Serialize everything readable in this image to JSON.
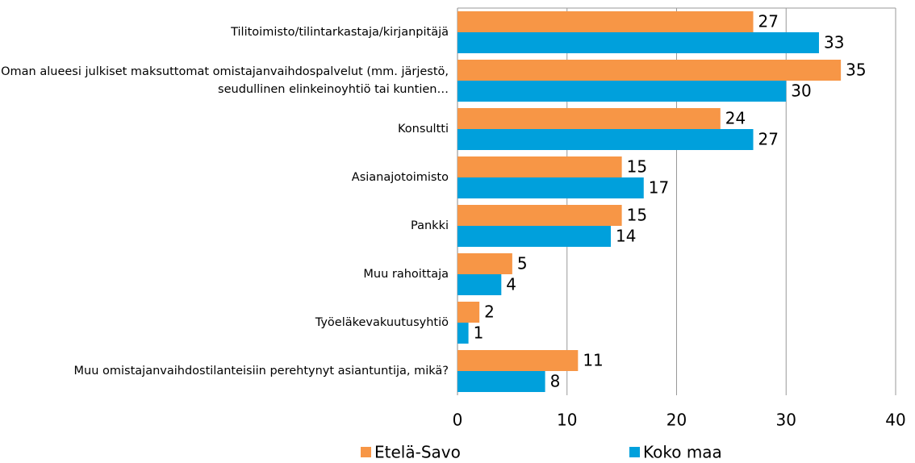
{
  "chart_data": {
    "type": "hbar",
    "categories": [
      "Tilitoimisto/tilintarkastaja/kirjanpitäjä",
      "Oman alueesi julkiset maksuttomat omistajanvaihdospalvelut (mm. järjestö, seudullinen elinkeinoyhtiö tai  kuntien…",
      "Konsultti",
      "Asianajotoimisto",
      "Pankki",
      "Muu rahoittaja",
      "Työeläkevakuutusyhtiö",
      "Muu omistajanvaihdostilanteisiin perehtynyt asiantuntija, mikä?"
    ],
    "series": [
      {
        "name": "Etelä-Savo",
        "color": "#f79646",
        "values": [
          27,
          35,
          24,
          15,
          15,
          5,
          2,
          11
        ]
      },
      {
        "name": "Koko maa",
        "color": "#00a0dc",
        "values": [
          33,
          30,
          27,
          17,
          14,
          4,
          1,
          8
        ]
      }
    ],
    "xlim": [
      0,
      40
    ],
    "xticks": [
      0,
      10,
      20,
      30,
      40
    ],
    "grid": true,
    "legend": "bottom"
  }
}
